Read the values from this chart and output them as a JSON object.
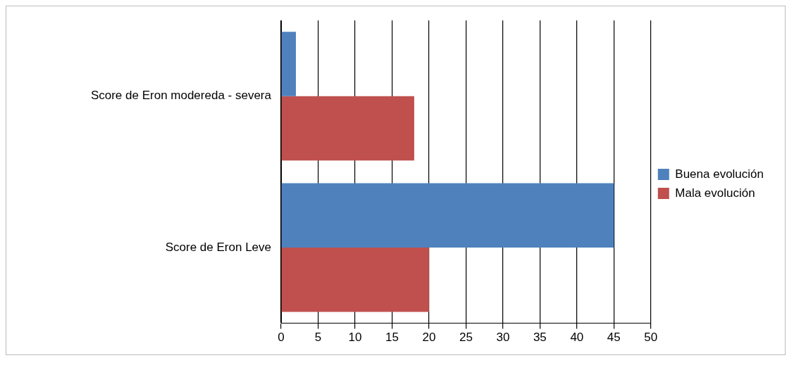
{
  "chart_data": {
    "type": "bar",
    "orientation": "horizontal",
    "categories": [
      "Score de Eron modereda - severa",
      "Score de Eron Leve"
    ],
    "series": [
      {
        "name": "Buena evolución",
        "color": "#4f81bd",
        "values": [
          2,
          45
        ]
      },
      {
        "name": "Mala evolución",
        "color": "#c0504d",
        "values": [
          18,
          20
        ]
      }
    ],
    "xlim": [
      0,
      50
    ],
    "xticks": [
      0,
      5,
      10,
      15,
      20,
      25,
      30,
      35,
      40,
      45,
      50
    ],
    "grid": "x",
    "legend": "right"
  }
}
